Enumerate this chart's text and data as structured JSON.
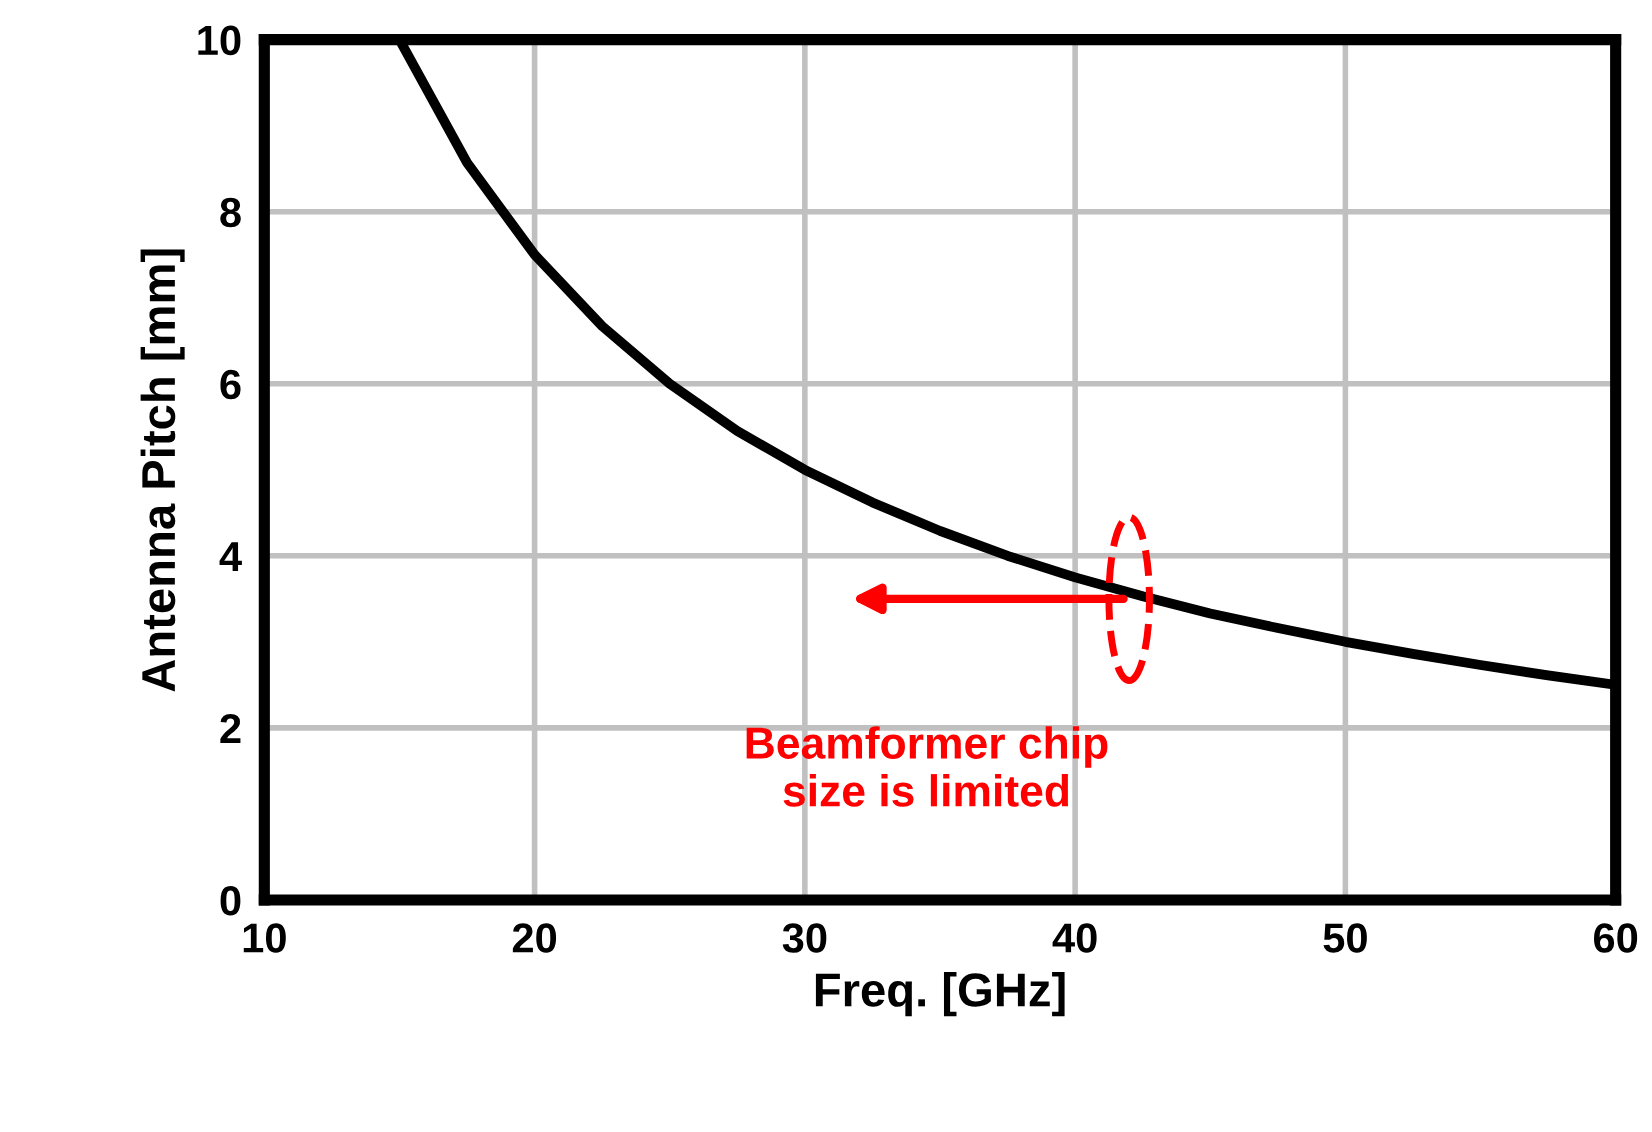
{
  "chart_data": {
    "type": "line",
    "xlabel": "Freq. [GHz]",
    "ylabel": "Antenna Pitch [mm]",
    "x": [
      15,
      17.5,
      20,
      22.5,
      25,
      27.5,
      30,
      32.5,
      35,
      37.5,
      40,
      42.5,
      45,
      47.5,
      50,
      52.5,
      55,
      57.5,
      60
    ],
    "series": [
      {
        "color": "#000000",
        "values": [
          10,
          8.57,
          7.5,
          6.67,
          6.0,
          5.45,
          5.0,
          4.62,
          4.29,
          4.0,
          3.75,
          3.53,
          3.33,
          3.16,
          3.0,
          2.86,
          2.73,
          2.61,
          2.5
        ]
      }
    ],
    "xlim": [
      10,
      60
    ],
    "xticks": [
      10,
      20,
      30,
      40,
      50,
      60
    ],
    "ylim": [
      0,
      10
    ],
    "yticks": [
      0,
      2,
      4,
      6,
      8,
      10
    ],
    "grid": true,
    "marker": "none",
    "line_style": "solid",
    "annotations": [
      {
        "text": "Beamformer chip\nsize is limited",
        "x": 42,
        "y": 3.5
      }
    ]
  }
}
